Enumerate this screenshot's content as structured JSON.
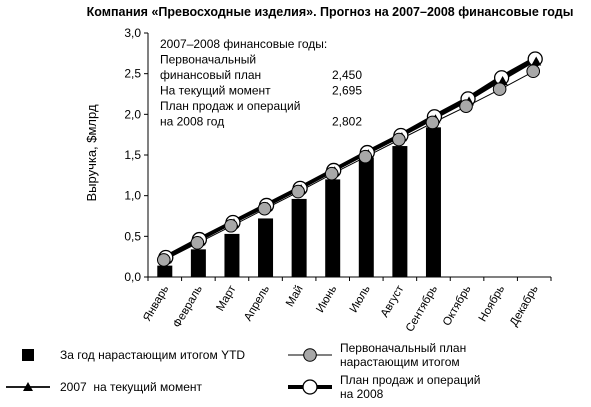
{
  "chart_data": {
    "type": "bar",
    "title": "Компания «Превосходные изделия». Прогноз на 2007–2008 финансовые годы",
    "xlabel": "",
    "ylabel": "Выручка, $млрд",
    "ylim": [
      0,
      3
    ],
    "y_ticks": [
      "0,0",
      "0,5",
      "1,0",
      "1,5",
      "2,0",
      "2,5",
      "3,0"
    ],
    "grid": false,
    "categories": [
      "Январь",
      "Февраль",
      "Март",
      "Апрель",
      "Май",
      "Июнь",
      "Июль",
      "Август",
      "Сентябрь",
      "Октябрь",
      "Ноябрь",
      "Декабрь"
    ],
    "series": [
      {
        "name": "За год нарастающим итогом YTD",
        "type": "bar",
        "values": [
          0.14,
          0.34,
          0.53,
          0.72,
          0.96,
          1.2,
          1.47,
          1.61,
          1.84,
          null,
          null,
          null
        ]
      },
      {
        "name": "Первоначальный план нарастающим итогом",
        "type": "line",
        "marker": "filled-circle",
        "values": [
          0.21,
          0.42,
          0.63,
          0.84,
          1.05,
          1.27,
          1.48,
          1.69,
          1.9,
          2.1,
          2.31,
          2.53
        ]
      },
      {
        "name": "2007 на текущий момент",
        "type": "line",
        "marker": "triangle",
        "values": [
          0.22,
          0.44,
          0.66,
          0.86,
          1.08,
          1.3,
          1.51,
          1.72,
          1.94,
          2.16,
          2.41,
          2.65
        ]
      },
      {
        "name": "План продаж и операций на 2008",
        "type": "line",
        "marker": "open-circle",
        "values": [
          0.24,
          0.46,
          0.67,
          0.88,
          1.09,
          1.31,
          1.53,
          1.74,
          1.97,
          2.19,
          2.45,
          2.68
        ]
      }
    ],
    "annotation": {
      "heading": "2007–2008 финансовые годы:",
      "rows": [
        {
          "label_lines": [
            "Первоначальный",
            "финансовый план"
          ],
          "value": "2,450"
        },
        {
          "label_lines": [
            "На текущий момент"
          ],
          "value": "2,695"
        },
        {
          "label_lines": [
            "План продаж и операций",
            "на 2008 год"
          ],
          "value": "2,802"
        }
      ]
    },
    "legend": {
      "placement": "bottom",
      "entries": [
        {
          "lines": [
            "За год нарастающим итогом YTD"
          ],
          "symbol": "bar"
        },
        {
          "lines": [
            "Первоначальный план",
            "нарастающим итогом"
          ],
          "symbol": "filled-circle"
        },
        {
          "lines": [
            "2007  на текущий момент"
          ],
          "symbol": "triangle"
        },
        {
          "lines": [
            "План продаж и операций",
            "на 2008"
          ],
          "symbol": "open-circle"
        }
      ]
    },
    "colors": {
      "bar": "#000000",
      "filled_marker": "#a8a8a8",
      "line": "#000000",
      "background": "#ffffff"
    }
  }
}
